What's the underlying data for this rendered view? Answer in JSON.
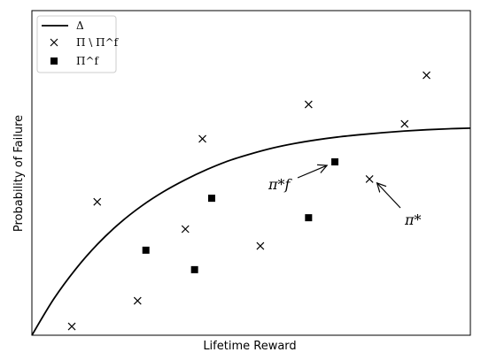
{
  "chart_data": {
    "type": "scatter",
    "xlabel": "Lifetime Reward",
    "ylabel": "Probability of Failure",
    "xlim": [
      0,
      100
    ],
    "ylim": [
      0,
      100
    ],
    "grid": false,
    "legend_placement": "top-left",
    "curve": {
      "name": "Δ",
      "x": [
        0,
        5,
        10,
        15,
        20,
        25,
        30,
        35,
        40,
        45,
        50,
        55,
        60,
        65,
        70,
        75,
        80,
        85,
        90,
        95,
        100
      ],
      "y": [
        0.0,
        11.2,
        20.4,
        28.1,
        34.5,
        39.8,
        44.2,
        47.9,
        51.1,
        53.8,
        55.9,
        57.7,
        59.1,
        60.2,
        61.1,
        61.8,
        62.4,
        62.9,
        63.3,
        63.6,
        63.8
      ]
    },
    "series": [
      {
        "name": "Π \\ Π^f",
        "marker": "x",
        "points": [
          {
            "x": 9.1,
            "y": 2.7
          },
          {
            "x": 24.1,
            "y": 10.6
          },
          {
            "x": 14.9,
            "y": 41.1
          },
          {
            "x": 35.0,
            "y": 32.7
          },
          {
            "x": 38.9,
            "y": 60.5
          },
          {
            "x": 52.1,
            "y": 27.5
          },
          {
            "x": 63.1,
            "y": 71.1
          },
          {
            "x": 77.0,
            "y": 48.1
          },
          {
            "x": 85.0,
            "y": 65.1
          },
          {
            "x": 90.0,
            "y": 80.1
          }
        ]
      },
      {
        "name": "Π^f",
        "marker": "square",
        "points": [
          {
            "x": 26.0,
            "y": 26.2
          },
          {
            "x": 37.1,
            "y": 20.2
          },
          {
            "x": 41.0,
            "y": 42.2
          },
          {
            "x": 63.1,
            "y": 36.2
          },
          {
            "x": 69.1,
            "y": 53.4
          }
        ]
      }
    ],
    "annotations": [
      {
        "label": "π*f",
        "target": {
          "x": 67.3,
          "y": 52.3
        }
      },
      {
        "label": "π*",
        "target": {
          "x": 78.7,
          "y": 46.9
        }
      }
    ],
    "colors": {
      "curve": "#000000",
      "markers": "#000000"
    }
  }
}
